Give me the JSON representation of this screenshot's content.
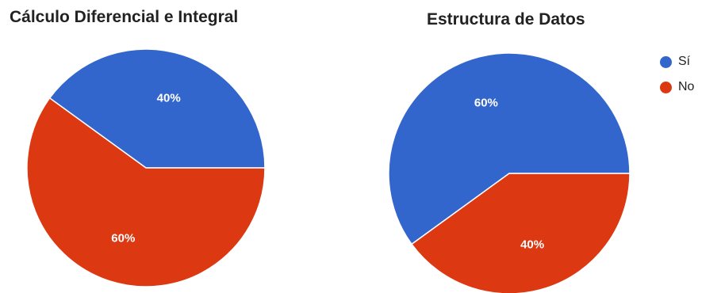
{
  "chart_data": [
    {
      "type": "pie",
      "title": "Cálculo Diferencial e Integral",
      "categories": [
        "Sí",
        "No"
      ],
      "values": [
        40,
        60
      ],
      "value_labels": [
        "40%",
        "60%"
      ],
      "colors": [
        "#3366cc",
        "#dc3912"
      ],
      "legend": "none"
    },
    {
      "type": "pie",
      "title": "Estructura de Datos",
      "categories": [
        "Sí",
        "No"
      ],
      "values": [
        60,
        40
      ],
      "value_labels": [
        "60%",
        "40%"
      ],
      "colors": [
        "#3366cc",
        "#dc3912"
      ],
      "legend": "right"
    }
  ],
  "legend": {
    "items": [
      {
        "label": "Sí",
        "color": "#3366cc"
      },
      {
        "label": "No",
        "color": "#dc3912"
      }
    ]
  }
}
